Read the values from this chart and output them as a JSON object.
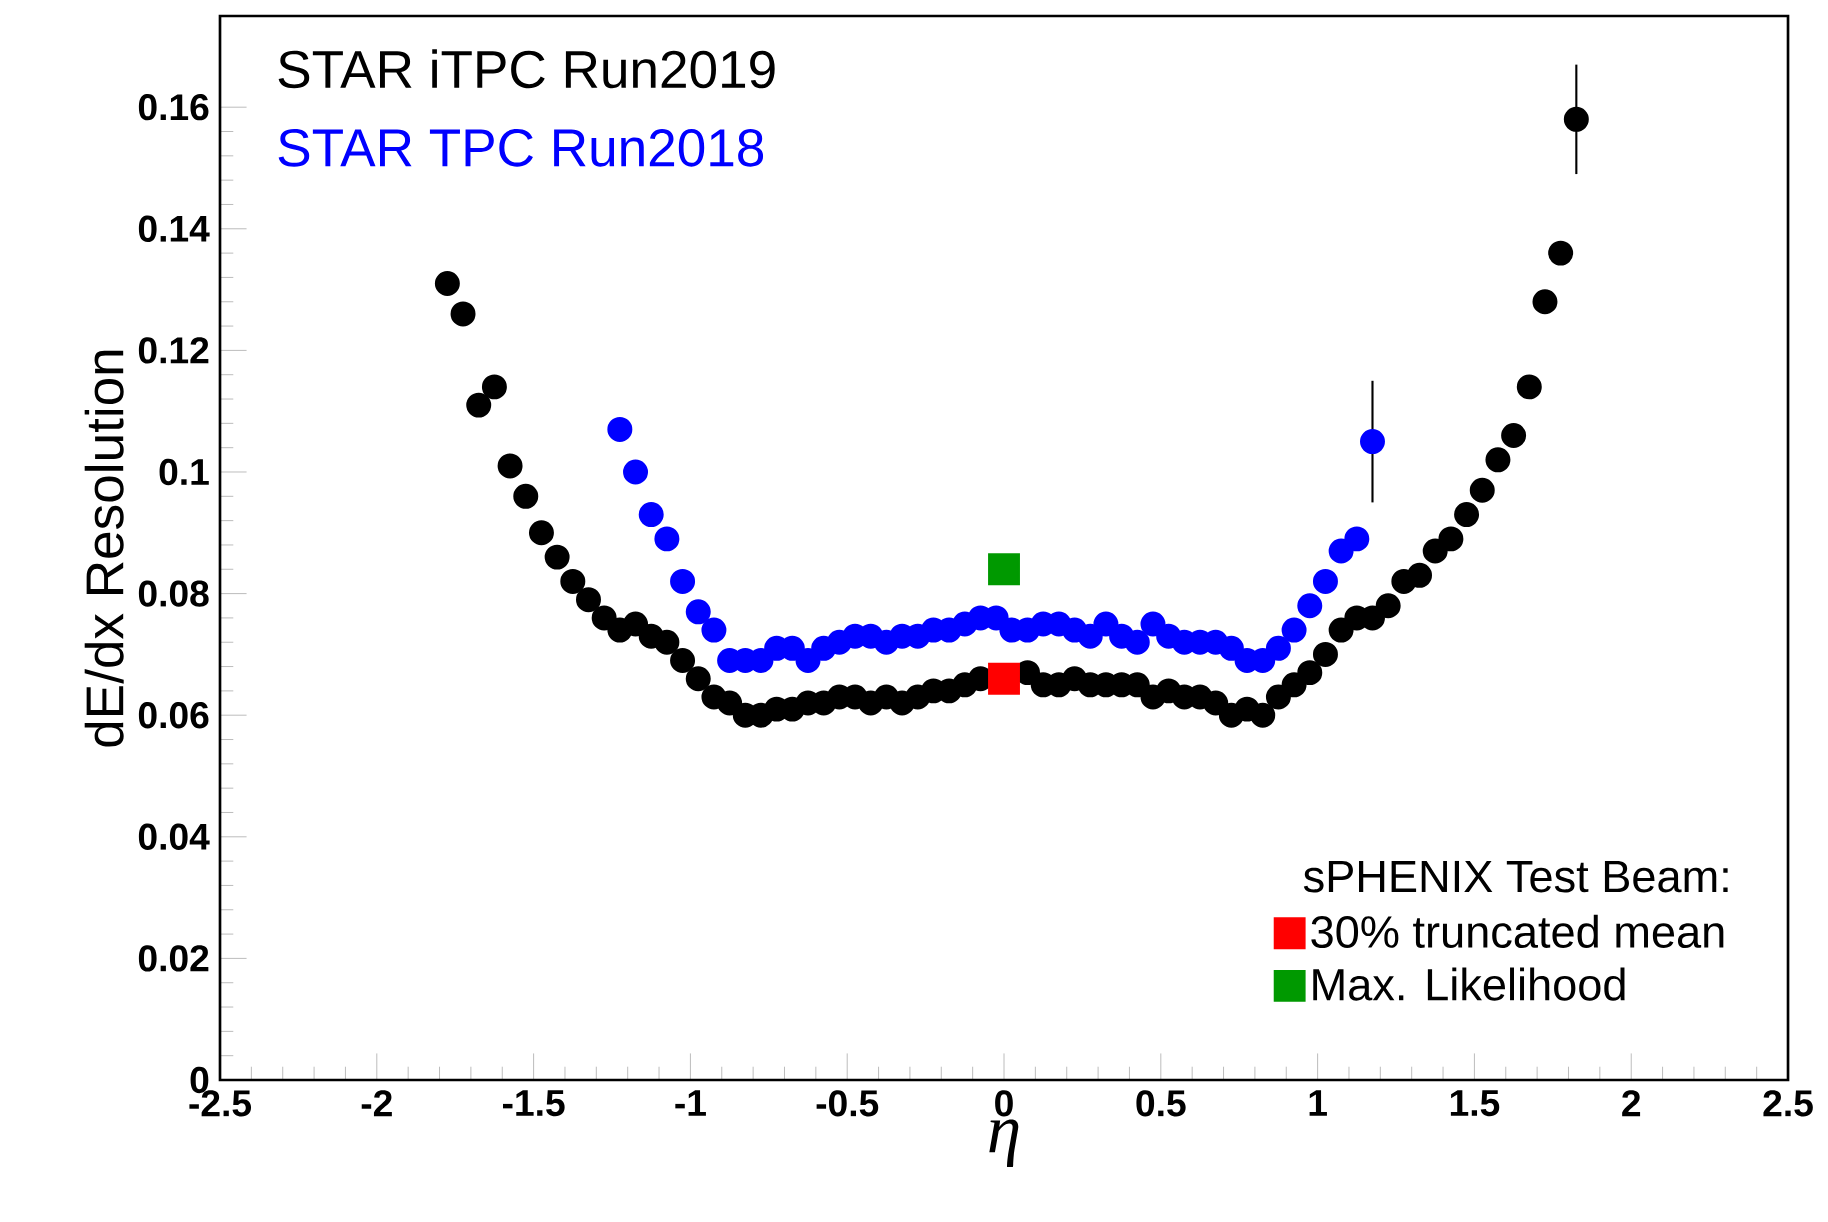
{
  "chart_data": {
    "type": "scatter",
    "xlabel": "η",
    "ylabel": "dE/dx Resolution",
    "legend_title": "sPHENIX Test Beam:",
    "legend": "bottom right",
    "xlim": [
      -2.5,
      2.5
    ],
    "ylim": [
      0,
      0.175
    ],
    "xticks": [
      -2.5,
      -2,
      -1.5,
      -1,
      -0.5,
      0,
      0.5,
      1,
      1.5,
      2,
      2.5
    ],
    "yticks": [
      0,
      0.02,
      0.04,
      0.06,
      0.08,
      0.1,
      0.12,
      0.14,
      0.16
    ],
    "series": [
      {
        "name": "STAR iTPC Run2019",
        "color": "#000000",
        "marker": "circle",
        "x": [
          -1.775,
          -1.725,
          -1.675,
          -1.625,
          -1.575,
          -1.525,
          -1.475,
          -1.425,
          -1.375,
          -1.325,
          -1.275,
          -1.225,
          -1.175,
          -1.125,
          -1.075,
          -1.025,
          -0.975,
          -0.925,
          -0.875,
          -0.825,
          -0.775,
          -0.725,
          -0.675,
          -0.625,
          -0.575,
          -0.525,
          -0.475,
          -0.425,
          -0.375,
          -0.325,
          -0.275,
          -0.225,
          -0.175,
          -0.125,
          -0.075,
          -0.025,
          0.025,
          0.075,
          0.125,
          0.175,
          0.225,
          0.275,
          0.325,
          0.375,
          0.425,
          0.475,
          0.525,
          0.575,
          0.625,
          0.675,
          0.725,
          0.775,
          0.825,
          0.875,
          0.925,
          0.975,
          1.025,
          1.075,
          1.125,
          1.175,
          1.225,
          1.275,
          1.325,
          1.375,
          1.425,
          1.475,
          1.525,
          1.575,
          1.625,
          1.675,
          1.725,
          1.775,
          1.825
        ],
        "values": [
          0.131,
          0.126,
          0.111,
          0.114,
          0.101,
          0.096,
          0.09,
          0.086,
          0.082,
          0.079,
          0.076,
          0.074,
          0.075,
          0.073,
          0.072,
          0.069,
          0.066,
          0.063,
          0.062,
          0.06,
          0.06,
          0.061,
          0.061,
          0.062,
          0.062,
          0.063,
          0.063,
          0.062,
          0.063,
          0.062,
          0.063,
          0.064,
          0.064,
          0.065,
          0.066,
          null,
          null,
          0.067,
          0.065,
          0.065,
          0.066,
          0.065,
          0.065,
          0.065,
          0.065,
          0.063,
          0.064,
          0.063,
          0.063,
          0.062,
          0.06,
          0.061,
          0.06,
          0.063,
          0.065,
          0.067,
          0.07,
          0.074,
          0.076,
          0.076,
          0.078,
          0.082,
          0.083,
          0.087,
          0.089,
          0.093,
          0.097,
          0.102,
          0.106,
          0.114,
          0.128,
          0.136,
          0.158
        ],
        "errors": [
          null,
          null,
          null,
          null,
          null,
          null,
          null,
          null,
          null,
          null,
          null,
          null,
          null,
          null,
          null,
          null,
          null,
          null,
          null,
          null,
          null,
          null,
          null,
          null,
          null,
          null,
          null,
          null,
          null,
          null,
          null,
          null,
          null,
          null,
          null,
          null,
          null,
          null,
          null,
          null,
          null,
          null,
          null,
          null,
          null,
          null,
          null,
          null,
          null,
          null,
          null,
          null,
          null,
          null,
          null,
          null,
          null,
          null,
          null,
          null,
          null,
          null,
          null,
          null,
          null,
          null,
          null,
          null,
          null,
          null,
          null,
          null,
          0.009
        ]
      },
      {
        "name": "STAR TPC Run2018",
        "color": "#0000ff",
        "marker": "circle",
        "x": [
          -1.225,
          -1.175,
          -1.125,
          -1.075,
          -1.025,
          -0.975,
          -0.925,
          -0.875,
          -0.825,
          -0.775,
          -0.725,
          -0.675,
          -0.625,
          -0.575,
          -0.525,
          -0.475,
          -0.425,
          -0.375,
          -0.325,
          -0.275,
          -0.225,
          -0.175,
          -0.125,
          -0.075,
          -0.025,
          0.025,
          0.075,
          0.125,
          0.175,
          0.225,
          0.275,
          0.325,
          0.375,
          0.425,
          0.475,
          0.525,
          0.575,
          0.625,
          0.675,
          0.725,
          0.775,
          0.825,
          0.875,
          0.925,
          0.975,
          1.025,
          1.075,
          1.125,
          1.175
        ],
        "values": [
          0.107,
          0.1,
          0.093,
          0.089,
          0.082,
          0.077,
          0.074,
          0.069,
          0.069,
          0.069,
          0.071,
          0.071,
          0.069,
          0.071,
          0.072,
          0.073,
          0.073,
          0.072,
          0.073,
          0.073,
          0.074,
          0.074,
          0.075,
          0.076,
          0.076,
          0.074,
          0.074,
          0.075,
          0.075,
          0.074,
          0.073,
          0.075,
          0.073,
          0.072,
          0.075,
          0.073,
          0.072,
          0.072,
          0.072,
          0.071,
          0.069,
          0.069,
          0.071,
          0.074,
          0.078,
          0.082,
          0.087,
          0.089,
          0.105
        ],
        "errors": [
          null,
          null,
          null,
          null,
          null,
          null,
          null,
          null,
          null,
          null,
          null,
          null,
          null,
          null,
          null,
          null,
          null,
          null,
          null,
          null,
          null,
          null,
          null,
          null,
          null,
          null,
          null,
          null,
          null,
          null,
          null,
          null,
          null,
          null,
          null,
          null,
          null,
          null,
          null,
          null,
          null,
          null,
          null,
          null,
          null,
          null,
          null,
          null,
          0.01
        ]
      },
      {
        "name": "30% truncated mean",
        "color": "#ff0000",
        "marker": "square",
        "x": [
          0
        ],
        "values": [
          0.066
        ]
      },
      {
        "name": "Max. Likelihood",
        "color": "#009900",
        "marker": "square",
        "x": [
          0
        ],
        "values": [
          0.084
        ]
      }
    ]
  }
}
